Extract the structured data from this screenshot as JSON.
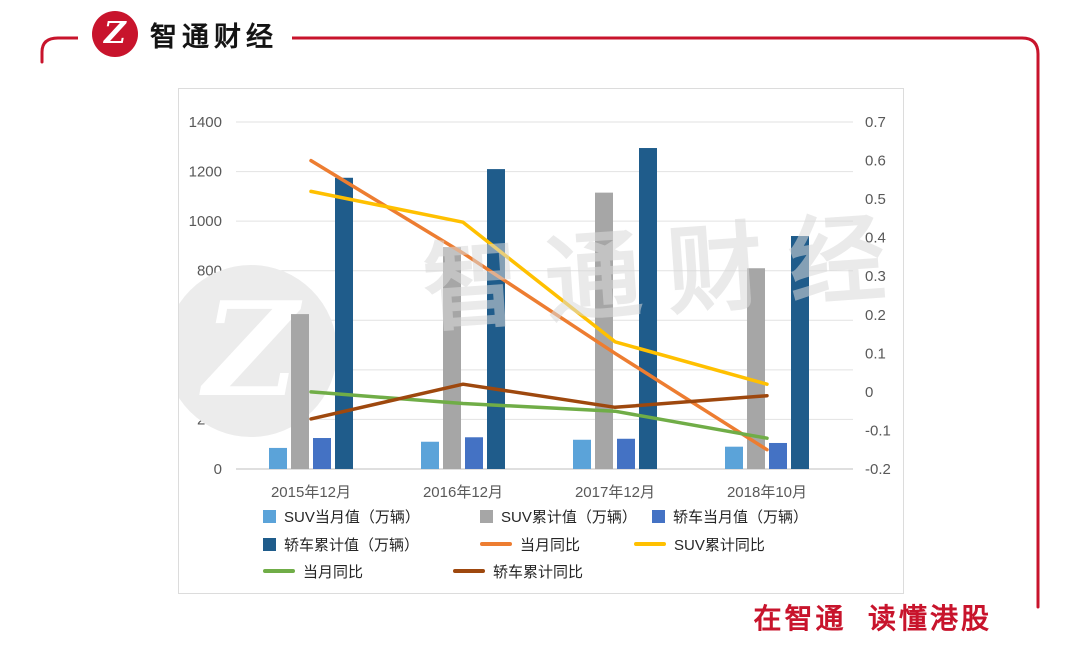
{
  "brand": {
    "name": "智通财经",
    "monogram": "Z",
    "accent_color": "#C8142C"
  },
  "footer": {
    "slogan": "在智通  读懂港股"
  },
  "watermark": {
    "text": "智通财经",
    "monogram": "Z",
    "color": "#D9D9D9"
  },
  "chart_data": {
    "type": "bar",
    "subtype": "combo-bar-line",
    "title": "",
    "categories": [
      "2015年12月",
      "2016年12月",
      "2017年12月",
      "2018年10月"
    ],
    "bar_series": [
      {
        "name": "SUV当月值（万辆）",
        "color": "#5BA3D9",
        "axis": "left",
        "values": [
          85,
          110,
          118,
          90
        ]
      },
      {
        "name": "SUV累计值（万辆）",
        "color": "#A6A6A6",
        "axis": "left",
        "values": [
          625,
          895,
          1115,
          810
        ]
      },
      {
        "name": "轿车当月值（万辆）",
        "color": "#4472C4",
        "axis": "left",
        "values": [
          125,
          128,
          122,
          105
        ]
      },
      {
        "name": "轿车累计值（万辆）",
        "color": "#1F5C8B",
        "axis": "left",
        "values": [
          1175,
          1210,
          1295,
          940
        ]
      }
    ],
    "line_series": [
      {
        "name": "当月同比",
        "color": "#ED7D31",
        "axis": "right",
        "values": [
          0.6,
          0.36,
          0.1,
          -0.15
        ]
      },
      {
        "name": "SUV累计同比",
        "color": "#FFC000",
        "axis": "right",
        "values": [
          0.52,
          0.44,
          0.13,
          0.02
        ]
      },
      {
        "name": "当月同比",
        "color": "#70AD47",
        "axis": "right",
        "values": [
          0.0,
          -0.03,
          -0.05,
          -0.12
        ]
      },
      {
        "name": "轿车累计同比",
        "color": "#9E480E",
        "axis": "right",
        "values": [
          -0.07,
          0.02,
          -0.04,
          -0.01
        ]
      }
    ],
    "left_axis": {
      "min": 0,
      "max": 1400,
      "ticks": [
        0,
        200,
        400,
        600,
        800,
        1000,
        1200,
        1400
      ]
    },
    "right_axis": {
      "min": -0.2,
      "max": 0.7,
      "tick_values": [
        -0.2,
        -0.1,
        0,
        0.1,
        0.2,
        0.3,
        0.4,
        0.5,
        0.6,
        0.7
      ],
      "tick_labels": [
        "-0.2",
        "-0.1",
        "0",
        "0.1",
        "0.2",
        "0.3",
        "0.4",
        "0.5",
        "0.6",
        "0.7"
      ]
    },
    "grid": true,
    "legend_position": "bottom"
  }
}
